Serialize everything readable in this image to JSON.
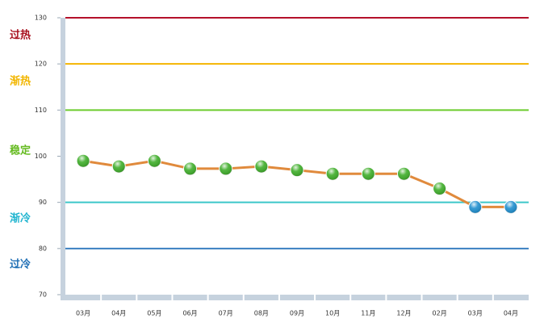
{
  "chart_data": {
    "type": "line",
    "categories": [
      "03月",
      "04月",
      "05月",
      "06月",
      "07月",
      "08月",
      "09月",
      "10月",
      "11月",
      "12月",
      "02月",
      "03月",
      "04月"
    ],
    "series": [
      {
        "color": "#e08a3c",
        "values": [
          99,
          97.8,
          99,
          97.3,
          97.3,
          97.8,
          97,
          96.2,
          96.2,
          96.2,
          93,
          89,
          89
        ],
        "marker_colors": [
          "#3fae2a",
          "#3fae2a",
          "#3fae2a",
          "#3fae2a",
          "#3fae2a",
          "#3fae2a",
          "#3fae2a",
          "#3fae2a",
          "#3fae2a",
          "#3fae2a",
          "#3fae2a",
          "#1f8fcf",
          "#1f8fcf"
        ]
      }
    ],
    "ylim": [
      70,
      130
    ],
    "yticks": [
      70,
      80,
      90,
      100,
      110,
      120,
      130
    ],
    "reference_lines": [
      {
        "value": 130,
        "color": "#b5102a"
      },
      {
        "value": 120,
        "color": "#f4b400"
      },
      {
        "value": 110,
        "color": "#6ccc2e"
      },
      {
        "value": 90,
        "color": "#3cc7c9"
      },
      {
        "value": 80,
        "color": "#3a7fc1"
      }
    ],
    "zone_labels": [
      {
        "label": "过热",
        "color": "#a8101e"
      },
      {
        "label": "渐热",
        "color": "#f2b600"
      },
      {
        "label": "稳定",
        "color": "#66bb22"
      },
      {
        "label": "渐冷",
        "color": "#22b5d0"
      },
      {
        "label": "过冷",
        "color": "#1f6fb5"
      }
    ]
  }
}
